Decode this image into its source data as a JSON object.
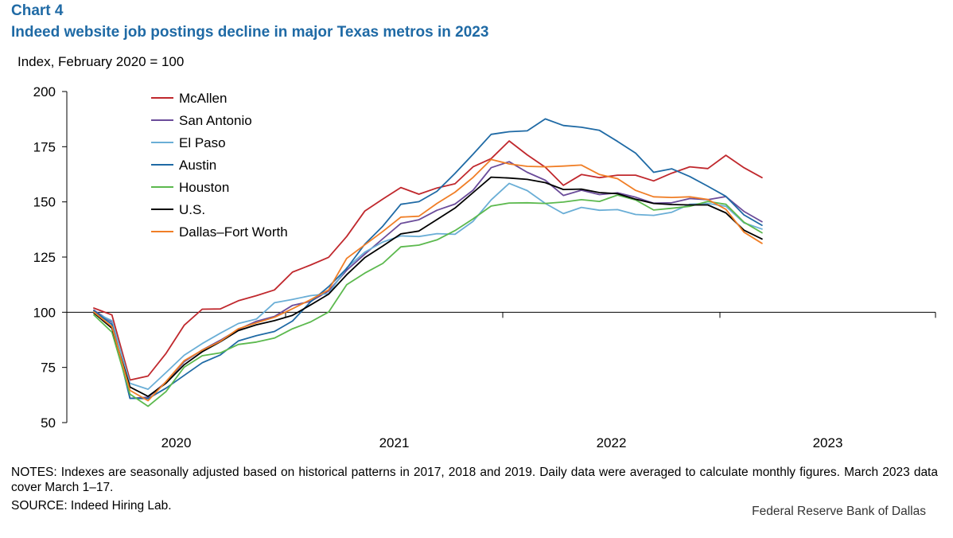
{
  "header": {
    "chart_label": "Chart 4",
    "title": "Indeed website job postings decline in major Texas metros in 2023",
    "units": "Index, February 2020 = 100"
  },
  "footer": {
    "notes": "NOTES: Indexes are seasonally adjusted based on historical patterns in 2017, 2018 and 2019. Daily data were averaged to calculate monthly figures. March 2023 data cover March 1–17.",
    "source": "SOURCE: Indeed Hiring Lab.",
    "credit": "Federal Reserve Bank of Dallas"
  },
  "chart_data": {
    "type": "line",
    "title": "Indeed website job postings decline in major Texas metros in 2023",
    "ylabel": "Index, February 2020 = 100",
    "xlabel": "",
    "ylim": [
      50,
      200
    ],
    "yticks": [
      50,
      75,
      100,
      125,
      150,
      175,
      200
    ],
    "x_tick_labels": [
      "2020",
      "2021",
      "2022",
      "2023"
    ],
    "x_start": "2020-02",
    "x_end": "2023-03",
    "reference_line": 100,
    "grid": false,
    "legend_position": "top-left",
    "series": [
      {
        "name": "McAllen",
        "color": "#c0282d",
        "values": [
          101.9,
          98.8,
          69.3,
          71.1,
          81.4,
          94.1,
          101.4,
          101.5,
          105.2,
          107.5,
          110.1,
          118.2,
          121.4,
          124.9,
          134.3,
          145.8,
          151.3,
          156.5,
          153.5,
          156.3,
          158.2,
          165.9,
          169.6,
          177.6,
          171.3,
          165.7,
          157.5,
          162.4,
          161.0,
          162.1,
          162.1,
          159.5,
          163.0,
          165.9,
          165.1,
          171.1,
          165.5,
          161.0
        ]
      },
      {
        "name": "San Antonio",
        "color": "#6b4c9a",
        "values": [
          100.9,
          95.5,
          61.0,
          61.5,
          68.4,
          77.6,
          82.9,
          87.3,
          92.2,
          95.9,
          98.1,
          103.1,
          104.9,
          109.6,
          119.0,
          126.3,
          133.3,
          140.2,
          141.9,
          146.2,
          149.0,
          155.3,
          165.5,
          168.2,
          163.4,
          159.8,
          152.9,
          155.3,
          153.3,
          154.1,
          152.1,
          149.4,
          149.6,
          151.5,
          151.0,
          152.4,
          145.7,
          141.0
        ]
      },
      {
        "name": "El Paso",
        "color": "#6aaed6",
        "values": [
          100.0,
          96.2,
          67.8,
          65.1,
          72.7,
          80.5,
          85.8,
          90.5,
          94.9,
          96.9,
          104.3,
          105.8,
          107.5,
          108.4,
          120.1,
          127.2,
          131.8,
          134.6,
          134.3,
          135.6,
          135.3,
          141.2,
          150.9,
          158.4,
          155.1,
          149.3,
          144.7,
          147.5,
          146.2,
          146.5,
          144.3,
          143.9,
          145.3,
          148.9,
          149.3,
          148.0,
          140.5,
          137.7
        ]
      },
      {
        "name": "Austin",
        "color": "#1f6aa5",
        "values": [
          100.7,
          94.5,
          61.0,
          60.9,
          65.6,
          71.4,
          77.1,
          80.6,
          87.0,
          89.4,
          91.3,
          96.0,
          104.7,
          111.6,
          119.8,
          130.8,
          139.0,
          148.9,
          150.1,
          154.8,
          162.9,
          171.6,
          180.6,
          181.8,
          182.2,
          187.6,
          184.6,
          183.8,
          182.4,
          177.4,
          172.1,
          163.4,
          165.0,
          161.5,
          157.1,
          152.5,
          144.1,
          139.4
        ]
      },
      {
        "name": "Houston",
        "color": "#5cb94e",
        "values": [
          98.8,
          91.0,
          62.9,
          57.4,
          64.1,
          75.1,
          80.3,
          81.6,
          85.4,
          86.5,
          88.3,
          92.5,
          95.6,
          100.1,
          112.5,
          117.7,
          122.1,
          129.6,
          130.4,
          132.8,
          137.0,
          142.3,
          148.1,
          149.5,
          149.6,
          149.3,
          149.9,
          151.0,
          150.2,
          153.1,
          150.9,
          146.3,
          147.1,
          148.0,
          150.2,
          148.9,
          140.8,
          136.0
        ]
      },
      {
        "name": "U.S.",
        "color": "#000000",
        "values": [
          99.7,
          92.8,
          66.1,
          61.9,
          67.9,
          76.2,
          82.1,
          86.6,
          91.7,
          94.3,
          96.2,
          98.6,
          103.3,
          108.2,
          117.0,
          124.7,
          130.0,
          135.5,
          136.8,
          142.0,
          147.2,
          154.2,
          161.2,
          160.8,
          160.2,
          158.7,
          155.6,
          155.8,
          154.2,
          153.7,
          151.2,
          149.3,
          148.8,
          148.6,
          148.6,
          145.0,
          137.2,
          133.2
        ]
      },
      {
        "name": "Dallas–Fort Worth",
        "color": "#f07e26",
        "values": [
          100.1,
          93.5,
          64.6,
          59.9,
          68.6,
          78.1,
          82.8,
          86.8,
          92.5,
          95.2,
          97.7,
          101.6,
          105.7,
          110.1,
          124.4,
          130.5,
          136.6,
          143.1,
          143.5,
          149.3,
          154.4,
          161.1,
          169.2,
          167.2,
          166.1,
          165.9,
          166.2,
          166.7,
          162.4,
          160.5,
          155.2,
          152.3,
          152.0,
          152.3,
          151.1,
          146.6,
          136.3,
          131.2
        ]
      }
    ]
  }
}
